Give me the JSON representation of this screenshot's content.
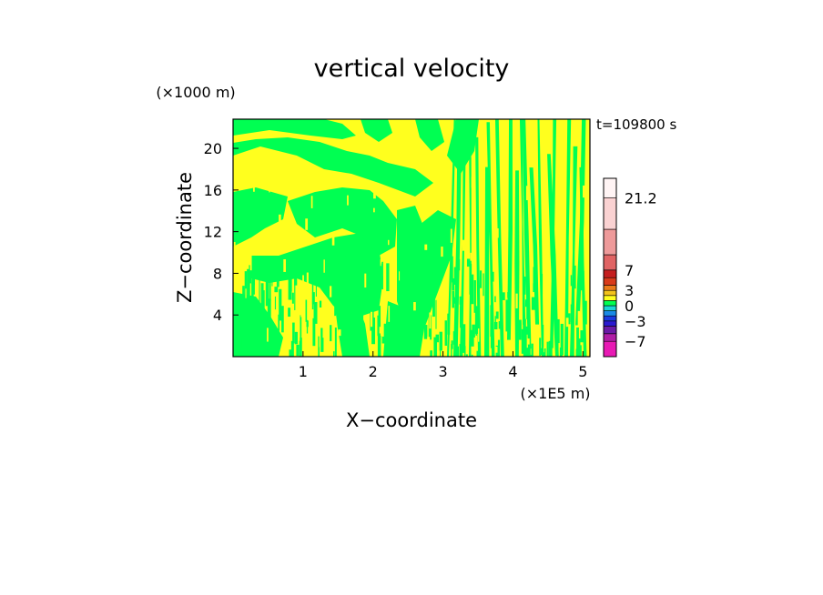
{
  "chart_data": {
    "type": "heatmap",
    "title": "vertical velocity",
    "xlabel": "X−coordinate",
    "ylabel": "Z−coordinate",
    "x_unit": "(×1E5 m)",
    "y_unit": "(×1000 m)",
    "time_label": "t=109800 s",
    "xlim": [
      0,
      5.1
    ],
    "ylim": [
      0,
      22.8
    ],
    "x_ticks": [
      1,
      2,
      3,
      4,
      5
    ],
    "y_ticks": [
      4,
      8,
      12,
      16,
      20
    ],
    "colorbar": {
      "levels": [
        {
          "from": -10.0,
          "to": -7.0,
          "color": "#e81ab4"
        },
        {
          "from": -7.0,
          "to": -5.5,
          "color": "#b01ea6"
        },
        {
          "from": -5.5,
          "to": -4.0,
          "color": "#6a1aa6"
        },
        {
          "from": -4.0,
          "to": -3.0,
          "color": "#2a1ad0"
        },
        {
          "from": -3.0,
          "to": -2.0,
          "color": "#1a3ae0"
        },
        {
          "from": -2.0,
          "to": -1.0,
          "color": "#1a8ae6"
        },
        {
          "from": -1.0,
          "to": 0.0,
          "color": "#1ad6d6"
        },
        {
          "from": 0.0,
          "to": 1.0,
          "color": "#00ff52"
        },
        {
          "from": 1.0,
          "to": 2.0,
          "color": "#ffff1e"
        },
        {
          "from": 2.0,
          "to": 3.0,
          "color": "#f2c21a"
        },
        {
          "from": 3.0,
          "to": 4.0,
          "color": "#ea7a1a"
        },
        {
          "from": 4.0,
          "to": 5.5,
          "color": "#d83a1a"
        },
        {
          "from": 5.5,
          "to": 7.0,
          "color": "#c41e1e"
        },
        {
          "from": 7.0,
          "to": 10.0,
          "color": "#e06464"
        },
        {
          "from": 10.0,
          "to": 15.0,
          "color": "#ee9a9a"
        },
        {
          "from": 15.0,
          "to": 21.2,
          "color": "#fad2d2"
        },
        {
          "from": 21.2,
          "to": 25.0,
          "color": "#fff4f4"
        }
      ],
      "labels": [
        "21.2",
        "7",
        "3",
        "0",
        "−3",
        "−7"
      ],
      "label_values": [
        21.2,
        7,
        3,
        0,
        -3,
        -7
      ]
    }
  }
}
